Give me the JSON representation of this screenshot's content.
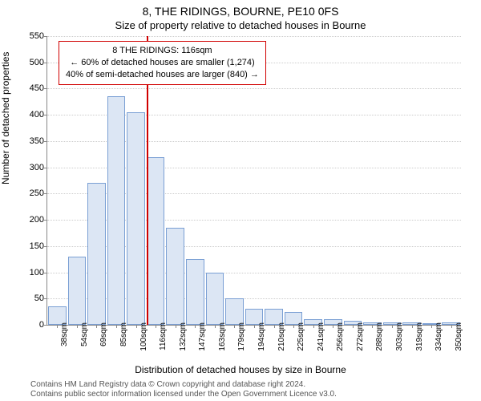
{
  "title_main": "8, THE RIDINGS, BOURNE, PE10 0FS",
  "title_sub": "Size of property relative to detached houses in Bourne",
  "ylabel": "Number of detached properties",
  "xlabel": "Distribution of detached houses by size in Bourne",
  "footnote_line1": "Contains HM Land Registry data © Crown copyright and database right 2024.",
  "footnote_line2": "Contains public sector information licensed under the Open Government Licence v3.0.",
  "chart": {
    "type": "histogram",
    "ylim": [
      0,
      550
    ],
    "ytick_step": 50,
    "categories": [
      "38sqm",
      "54sqm",
      "69sqm",
      "85sqm",
      "100sqm",
      "116sqm",
      "132sqm",
      "147sqm",
      "163sqm",
      "179sqm",
      "194sqm",
      "210sqm",
      "225sqm",
      "241sqm",
      "256sqm",
      "272sqm",
      "288sqm",
      "303sqm",
      "319sqm",
      "334sqm",
      "350sqm"
    ],
    "values": [
      35,
      130,
      270,
      435,
      405,
      320,
      185,
      125,
      100,
      50,
      30,
      30,
      25,
      10,
      10,
      8,
      5,
      5,
      5,
      3,
      5
    ],
    "bar_fill": "#dce6f4",
    "bar_border": "#7a9fd4",
    "grid_color": "#cccccc",
    "axis_color": "#888888",
    "background": "#ffffff",
    "marker": {
      "category_index": 5,
      "line_color": "#d00000",
      "box_border": "#d00000",
      "box_bg": "#ffffff",
      "line1": "8 THE RIDINGS: 116sqm",
      "line2": "← 60% of detached houses are smaller (1,274)",
      "line3": "40% of semi-detached houses are larger (840) →"
    },
    "title_fontsize": 14,
    "label_fontsize": 12,
    "tick_fontsize": 11
  }
}
